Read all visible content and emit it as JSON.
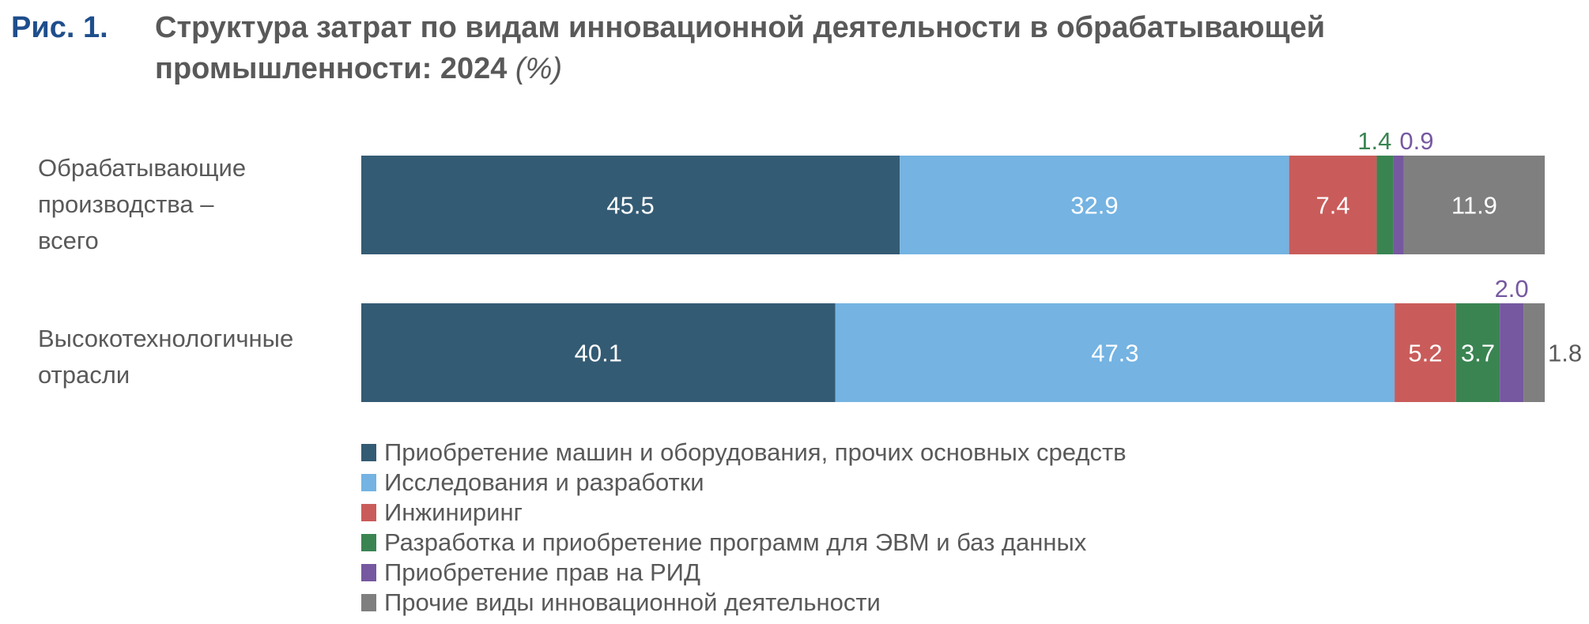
{
  "figure_label": "Рис. 1.",
  "title_line1": "Структура затрат по видам инновационной деятельности в обрабатывающей",
  "title_line2": "промышленности: 2024",
  "title_unit": "(%)",
  "chart_data": {
    "type": "bar",
    "orientation": "horizontal",
    "stacked": true,
    "categories": [
      [
        "Обрабатывающие",
        "производства –",
        "всего"
      ],
      [
        "Высокотехнологичные",
        "отрасли"
      ]
    ],
    "series": [
      {
        "name": "Приобретение машин и оборудования, прочих основных средств",
        "color": "#345B74",
        "values": [
          45.5,
          40.1
        ]
      },
      {
        "name": "Исследования и разработки",
        "color": "#74B3E2",
        "values": [
          32.9,
          47.3
        ]
      },
      {
        "name": "Инжиниринг",
        "color": "#C95C5A",
        "values": [
          7.4,
          5.2
        ]
      },
      {
        "name": "Разработка и приобретение программ для ЭВМ и баз данных",
        "color": "#3A8452",
        "values": [
          1.4,
          3.7
        ]
      },
      {
        "name": "Приобретение прав на РИД",
        "color": "#7658A0",
        "values": [
          0.9,
          2.0
        ]
      },
      {
        "name": "Прочие виды инновационной деятельности",
        "color": "#7F7F7F",
        "values": [
          11.9,
          1.8
        ]
      }
    ],
    "value_labels": [
      [
        "45.5",
        "32.9",
        "7.4",
        "1.4",
        "0.9",
        "11.9"
      ],
      [
        "40.1",
        "47.3",
        "5.2",
        "3.7",
        "2.0",
        "1.8"
      ]
    ],
    "xlim": [
      0,
      100
    ],
    "legend_position": "bottom",
    "grid": false
  }
}
